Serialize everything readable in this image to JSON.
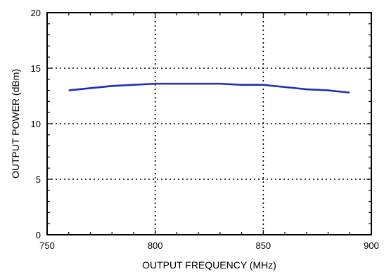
{
  "chart_data": {
    "type": "line",
    "xlabel": "OUTPUT FREQUENCY (MHz)",
    "ylabel": "OUTPUT POWER (dBm)",
    "xlim": [
      750,
      900
    ],
    "ylim": [
      0,
      20
    ],
    "xticks": [
      750,
      800,
      850,
      900
    ],
    "yticks": [
      0,
      5,
      10,
      15,
      20
    ],
    "grid": true,
    "grid_style": "dotted",
    "series": [
      {
        "color": "#1f2fb5",
        "x": [
          760,
          770,
          780,
          790,
          800,
          810,
          820,
          830,
          840,
          850,
          860,
          870,
          880,
          890
        ],
        "y": [
          13.0,
          13.2,
          13.4,
          13.5,
          13.6,
          13.6,
          13.6,
          13.6,
          13.5,
          13.5,
          13.3,
          13.1,
          13.0,
          12.8
        ]
      }
    ]
  }
}
